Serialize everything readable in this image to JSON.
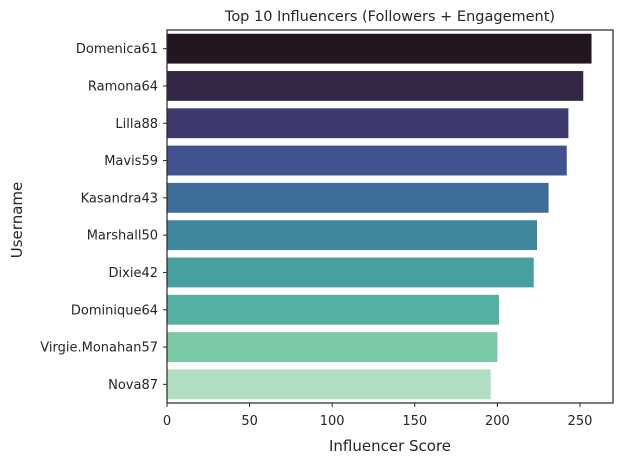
{
  "chart_data": {
    "type": "bar",
    "orientation": "horizontal",
    "title": "Top 10 Influencers (Followers + Engagement)",
    "xlabel": "Influencer Score",
    "ylabel": "Username",
    "categories": [
      "Domenica61",
      "Ramona64",
      "Lilla88",
      "Mavis59",
      "Kasandra43",
      "Marshall50",
      "Dixie42",
      "Dominique64",
      "Virgie.Monahan57",
      "Nova87"
    ],
    "values": [
      257,
      252,
      243,
      242,
      231,
      224,
      222,
      201,
      200,
      196
    ],
    "xlim": [
      0,
      270
    ],
    "xticks": [
      0,
      50,
      100,
      150,
      200,
      250
    ],
    "grid": false,
    "legend": "none",
    "colors": [
      "#231621",
      "#342645",
      "#3e3a6e",
      "#405290",
      "#3d6d98",
      "#3f879c",
      "#45a09f",
      "#55b1a2",
      "#7bc8a7",
      "#b2dfc1"
    ]
  }
}
